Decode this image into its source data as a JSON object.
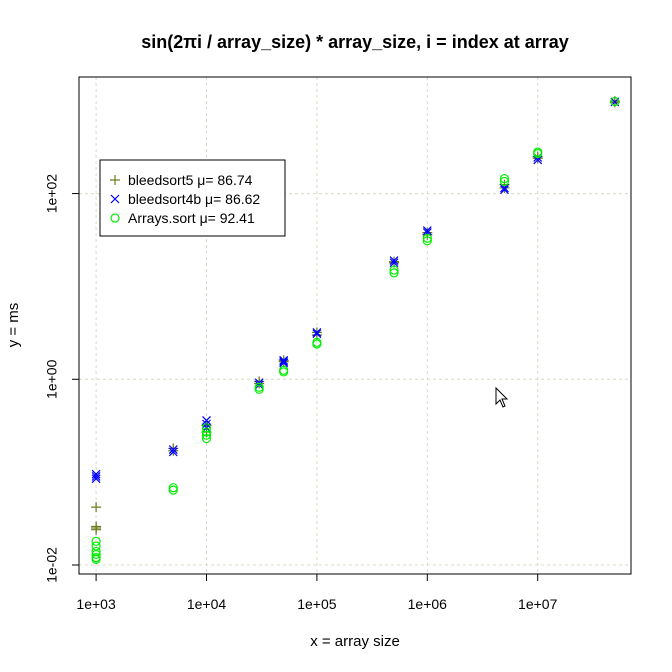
{
  "chart_data": {
    "type": "scatter",
    "title": "sin(2πi / array_size) * array_size, i = index at array",
    "xlabel": "x = array size",
    "ylabel": "y = ms",
    "x_scale": "log",
    "y_scale": "log",
    "xlim": [
      700,
      70000000
    ],
    "ylim": [
      0.008,
      1800
    ],
    "grid": true,
    "legend_position": "top-left",
    "x_ticks": [
      {
        "value": 1000,
        "label": "1e+03"
      },
      {
        "value": 10000,
        "label": "1e+04"
      },
      {
        "value": 100000,
        "label": "1e+05"
      },
      {
        "value": 1000000,
        "label": "1e+06"
      },
      {
        "value": 10000000,
        "label": "1e+07"
      }
    ],
    "y_ticks": [
      {
        "value": 0.01,
        "label": "1e-02"
      },
      {
        "value": 1,
        "label": "1e+00"
      },
      {
        "value": 100,
        "label": "1e+02"
      }
    ],
    "series": [
      {
        "name": "bleedsort5 μ= 86.74",
        "marker": "plus",
        "color": "#6b7a1e",
        "points": [
          {
            "x": 1000,
            "y": 0.042
          },
          {
            "x": 1000,
            "y": 0.026
          },
          {
            "x": 1000,
            "y": 0.025
          },
          {
            "x": 1000,
            "y": 0.024
          },
          {
            "x": 5000,
            "y": 0.18
          },
          {
            "x": 5000,
            "y": 0.17
          },
          {
            "x": 10000,
            "y": 0.32
          },
          {
            "x": 10000,
            "y": 0.27
          },
          {
            "x": 30000,
            "y": 0.9
          },
          {
            "x": 30000,
            "y": 0.95
          },
          {
            "x": 50000,
            "y": 1.55
          },
          {
            "x": 50000,
            "y": 1.6
          },
          {
            "x": 100000,
            "y": 3.0
          },
          {
            "x": 100000,
            "y": 3.2
          },
          {
            "x": 500000,
            "y": 18.0
          },
          {
            "x": 500000,
            "y": 18.5
          },
          {
            "x": 1000000,
            "y": 36.0
          },
          {
            "x": 1000000,
            "y": 38.0
          },
          {
            "x": 5000000,
            "y": 115.0
          },
          {
            "x": 5000000,
            "y": 125.0
          },
          {
            "x": 10000000,
            "y": 240.0
          },
          {
            "x": 10000000,
            "y": 250.0
          },
          {
            "x": 50000000,
            "y": 960.0
          },
          {
            "x": 50000000,
            "y": 990.0
          }
        ]
      },
      {
        "name": "bleedsort4b μ= 86.62",
        "marker": "cross",
        "color": "#0000ff",
        "points": [
          {
            "x": 1000,
            "y": 0.095
          },
          {
            "x": 1000,
            "y": 0.085
          },
          {
            "x": 1000,
            "y": 0.09
          },
          {
            "x": 5000,
            "y": 0.165
          },
          {
            "x": 5000,
            "y": 0.175
          },
          {
            "x": 10000,
            "y": 0.36
          },
          {
            "x": 10000,
            "y": 0.33
          },
          {
            "x": 10000,
            "y": 0.3
          },
          {
            "x": 30000,
            "y": 0.92
          },
          {
            "x": 30000,
            "y": 0.87
          },
          {
            "x": 50000,
            "y": 1.5
          },
          {
            "x": 50000,
            "y": 1.6
          },
          {
            "x": 50000,
            "y": 1.55
          },
          {
            "x": 100000,
            "y": 3.1
          },
          {
            "x": 100000,
            "y": 3.2
          },
          {
            "x": 500000,
            "y": 18.0
          },
          {
            "x": 500000,
            "y": 19.0
          },
          {
            "x": 1000000,
            "y": 38.0
          },
          {
            "x": 1000000,
            "y": 40.0
          },
          {
            "x": 5000000,
            "y": 110.0
          },
          {
            "x": 5000000,
            "y": 115.0
          },
          {
            "x": 10000000,
            "y": 230.0
          },
          {
            "x": 10000000,
            "y": 245.0
          },
          {
            "x": 50000000,
            "y": 970.0
          }
        ]
      },
      {
        "name": "Arrays.sort μ= 92.41",
        "marker": "circle",
        "color": "#00ee00",
        "points": [
          {
            "x": 1000,
            "y": 0.018
          },
          {
            "x": 1000,
            "y": 0.016
          },
          {
            "x": 1000,
            "y": 0.014
          },
          {
            "x": 1000,
            "y": 0.013
          },
          {
            "x": 1000,
            "y": 0.012
          },
          {
            "x": 1000,
            "y": 0.0115
          },
          {
            "x": 5000,
            "y": 0.068
          },
          {
            "x": 5000,
            "y": 0.064
          },
          {
            "x": 10000,
            "y": 0.3
          },
          {
            "x": 10000,
            "y": 0.27
          },
          {
            "x": 10000,
            "y": 0.25
          },
          {
            "x": 10000,
            "y": 0.23
          },
          {
            "x": 30000,
            "y": 0.82
          },
          {
            "x": 30000,
            "y": 0.78
          },
          {
            "x": 50000,
            "y": 1.25
          },
          {
            "x": 50000,
            "y": 1.2
          },
          {
            "x": 100000,
            "y": 2.5
          },
          {
            "x": 100000,
            "y": 2.4
          },
          {
            "x": 500000,
            "y": 15.0
          },
          {
            "x": 500000,
            "y": 14.0
          },
          {
            "x": 1000000,
            "y": 33.0
          },
          {
            "x": 1000000,
            "y": 31.0
          },
          {
            "x": 5000000,
            "y": 145.0
          },
          {
            "x": 5000000,
            "y": 135.0
          },
          {
            "x": 10000000,
            "y": 280.0
          },
          {
            "x": 10000000,
            "y": 270.0
          },
          {
            "x": 50000000,
            "y": 980.0
          }
        ]
      }
    ]
  }
}
